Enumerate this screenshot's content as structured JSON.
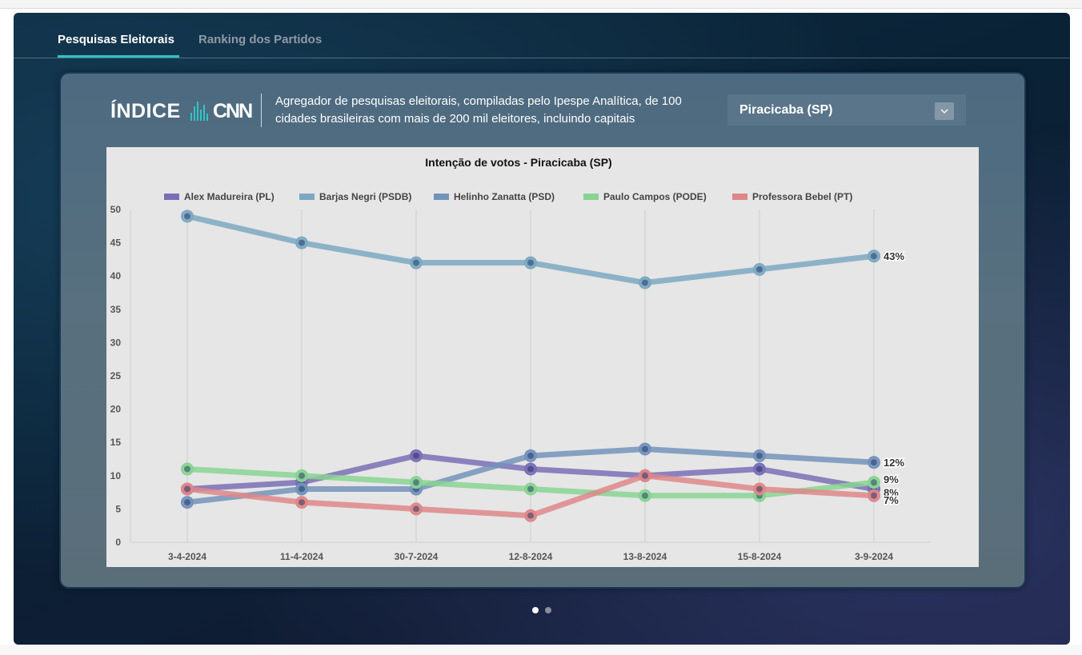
{
  "tabs": [
    {
      "label": "Pesquisas Eleitorais",
      "active": true
    },
    {
      "label": "Ranking dos Partidos",
      "active": false
    }
  ],
  "header": {
    "logo_text": "ÍNDICE",
    "logo_brand": "CNN",
    "description": "Agregador de pesquisas eleitorais, compiladas pelo Ipespe Analítica, de 100 cidades brasileiras com mais de 200 mil eleitores, incluindo capitais"
  },
  "city_select": {
    "value": "Piracicaba (SP)",
    "icon": "chevron-down-icon"
  },
  "carousel": {
    "count": 2,
    "active_index": 0
  },
  "colors": {
    "accent": "#2ec4c4",
    "chart_bg": "#e6e6e6"
  },
  "chart_data": {
    "type": "line",
    "title": "Intenção de votos - Piracicaba (SP)",
    "xlabel": "",
    "ylabel": "",
    "categories": [
      "3-4-2024",
      "11-4-2024",
      "30-7-2024",
      "12-8-2024",
      "13-8-2024",
      "15-8-2024",
      "3-9-2024"
    ],
    "ylim": [
      0,
      50
    ],
    "yticks": [
      0,
      5,
      10,
      15,
      20,
      25,
      30,
      35,
      40,
      45,
      50
    ],
    "grid": "vertical",
    "legend": "top",
    "series": [
      {
        "name": "Alex Madureira (PL)",
        "color": "#7a6fb5",
        "values": [
          8,
          9,
          13,
          11,
          10,
          11,
          8
        ],
        "end_label": "8%"
      },
      {
        "name": "Barjas Negri (PSDB)",
        "color": "#7da8c2",
        "values": [
          49,
          45,
          42,
          42,
          39,
          41,
          43
        ],
        "end_label": "43%"
      },
      {
        "name": "Helinho Zanatta (PSD)",
        "color": "#7493bb",
        "values": [
          6,
          8,
          8,
          13,
          14,
          13,
          12
        ],
        "end_label": "12%"
      },
      {
        "name": "Paulo Campos (PODE)",
        "color": "#88d393",
        "values": [
          11,
          10,
          9,
          8,
          7,
          7,
          9
        ],
        "end_label": "9%"
      },
      {
        "name": "Professora Bebel (PT)",
        "color": "#de8789",
        "values": [
          8,
          6,
          5,
          4,
          10,
          8,
          7
        ],
        "end_label": "7%"
      }
    ]
  }
}
